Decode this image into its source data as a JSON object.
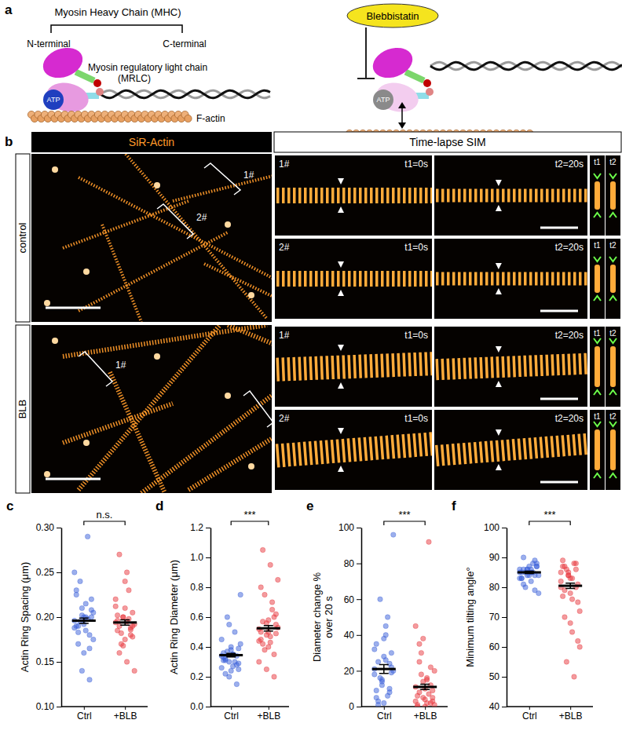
{
  "figure": {
    "panel_a": {
      "label": "a",
      "title": "Myosin Heavy Chain (MHC)",
      "n_terminal": "N-terminal",
      "c_terminal": "C-terminal",
      "mrlc": [
        "Myosin regulatory light chain",
        "(MRLC)"
      ],
      "atp": "ATP",
      "f_actin": "F-actin",
      "inhibitor": "Blebbistatin"
    },
    "panel_b": {
      "label": "b",
      "stain": "SiR-Actin",
      "method": "Time-lapse SIM",
      "conditions": [
        "control",
        "BLB"
      ],
      "regions": [
        "1#",
        "2#"
      ],
      "times": [
        "t1=0s",
        "t2=20s"
      ],
      "short_times": [
        "t1",
        "t2"
      ]
    }
  },
  "chart_data": [
    {
      "type": "strip",
      "panel": "c",
      "ylabel": "Actin Ring Spacing (μm)",
      "categories": [
        "Ctrl",
        "+BLB"
      ],
      "colors": [
        "#3a5fd9",
        "#e8383d"
      ],
      "values": [
        [
          0.196,
          0.21,
          0.18,
          0.19,
          0.2,
          0.22,
          0.17,
          0.185,
          0.205,
          0.195,
          0.29,
          0.25,
          0.14,
          0.13,
          0.23,
          0.16,
          0.2,
          0.19,
          0.215,
          0.175,
          0.24,
          0.198,
          0.188,
          0.202,
          0.165,
          0.225,
          0.192,
          0.208,
          0.183,
          0.2
        ],
        [
          0.194,
          0.2,
          0.18,
          0.185,
          0.21,
          0.19,
          0.27,
          0.15,
          0.14,
          0.17,
          0.23,
          0.22,
          0.2,
          0.188,
          0.196,
          0.175,
          0.205,
          0.16,
          0.25,
          0.192,
          0.182,
          0.198,
          0.212,
          0.168,
          0.186,
          0.202,
          0.24,
          0.178,
          0.19,
          0.195
        ]
      ],
      "mean": [
        0.196,
        0.194
      ],
      "error": [
        0.003,
        0.003
      ],
      "significance": "n.s.",
      "ylim": [
        0.1,
        0.3
      ],
      "yticks": [
        {
          "value": 0.1,
          "label": "0.10"
        },
        0.15,
        {
          "value": 0.2,
          "label": "0.20"
        },
        0.25,
        {
          "value": 0.3,
          "label": "0.30"
        }
      ]
    },
    {
      "type": "strip",
      "panel": "d",
      "ylabel": "Actin Ring Diameter (μm)",
      "categories": [
        "Ctrl",
        "+BLB"
      ],
      "colors": [
        "#3a5fd9",
        "#e8383d"
      ],
      "values": [
        [
          0.34,
          0.3,
          0.28,
          0.36,
          0.4,
          0.25,
          0.32,
          0.35,
          0.75,
          0.6,
          0.5,
          0.45,
          0.2,
          0.15,
          0.33,
          0.38,
          0.29,
          0.31,
          0.27,
          0.42,
          0.37,
          0.3,
          0.26,
          0.55,
          0.34,
          0.31,
          0.24,
          0.39,
          0.22,
          0.35
        ],
        [
          0.52,
          0.48,
          0.6,
          0.45,
          0.4,
          0.55,
          1.05,
          0.95,
          0.85,
          0.75,
          0.7,
          0.3,
          0.25,
          0.2,
          0.5,
          0.58,
          0.62,
          0.42,
          0.47,
          0.53,
          0.38,
          0.65,
          0.44,
          0.56,
          0.35,
          0.8,
          0.5,
          0.49,
          0.57,
          0.43
        ]
      ],
      "mean": [
        0.345,
        0.525
      ],
      "error": [
        0.012,
        0.018
      ],
      "significance": "***",
      "ylim": [
        0,
        1.2
      ],
      "yticks": [
        {
          "value": 0,
          "label": "0.0"
        },
        0.2,
        0.4,
        0.6,
        0.8,
        {
          "value": 1,
          "label": "1.0"
        },
        1.2
      ]
    },
    {
      "type": "strip",
      "panel": "e",
      "ylabel": [
        "Diameter change %",
        "over 20 s"
      ],
      "categories": [
        "Ctrl",
        "+BLB"
      ],
      "colors": [
        "#3a5fd9",
        "#e8383d"
      ],
      "values": [
        [
          21,
          15,
          10,
          5,
          2,
          30,
          25,
          40,
          96,
          60,
          50,
          18,
          12,
          8,
          35,
          28,
          22,
          3,
          45,
          20,
          16,
          6,
          32,
          14,
          24,
          9,
          38,
          19,
          1,
          26
        ],
        [
          11,
          5,
          2,
          1,
          0,
          3,
          8,
          15,
          20,
          30,
          92,
          45,
          38,
          12,
          6,
          4,
          9,
          25,
          2,
          1,
          18,
          7,
          3,
          14,
          22,
          0,
          10,
          5,
          35,
          16
        ]
      ],
      "mean": [
        21,
        11
      ],
      "error": [
        2.5,
        1.5
      ],
      "significance": "***",
      "ylim": [
        0,
        100
      ],
      "yticks": [
        0,
        20,
        40,
        60,
        80,
        100
      ]
    },
    {
      "type": "strip",
      "panel": "f",
      "ylabel": "Minimum tilting angle°",
      "categories": [
        "Ctrl",
        "+BLB"
      ],
      "colors": [
        "#3a5fd9",
        "#e8383d"
      ],
      "values": [
        [
          85,
          86,
          84,
          83,
          87,
          88,
          90,
          82,
          78,
          80,
          85,
          86,
          84,
          89,
          83,
          85,
          87,
          81,
          86,
          84,
          85,
          88,
          83,
          86,
          79,
          85,
          84,
          87,
          86,
          85
        ],
        [
          80,
          85,
          88,
          89,
          78,
          75,
          70,
          65,
          60,
          55,
          50,
          82,
          84,
          86,
          87,
          83,
          81,
          79,
          76,
          72,
          86,
          88,
          85,
          84,
          80,
          77,
          68,
          62,
          87,
          83
        ]
      ],
      "mean": [
        85,
        80.5
      ],
      "error": [
        0.4,
        0.9
      ],
      "significance": "***",
      "ylim": [
        40,
        100
      ],
      "yticks": [
        40,
        50,
        60,
        70,
        80,
        90,
        100
      ]
    }
  ]
}
